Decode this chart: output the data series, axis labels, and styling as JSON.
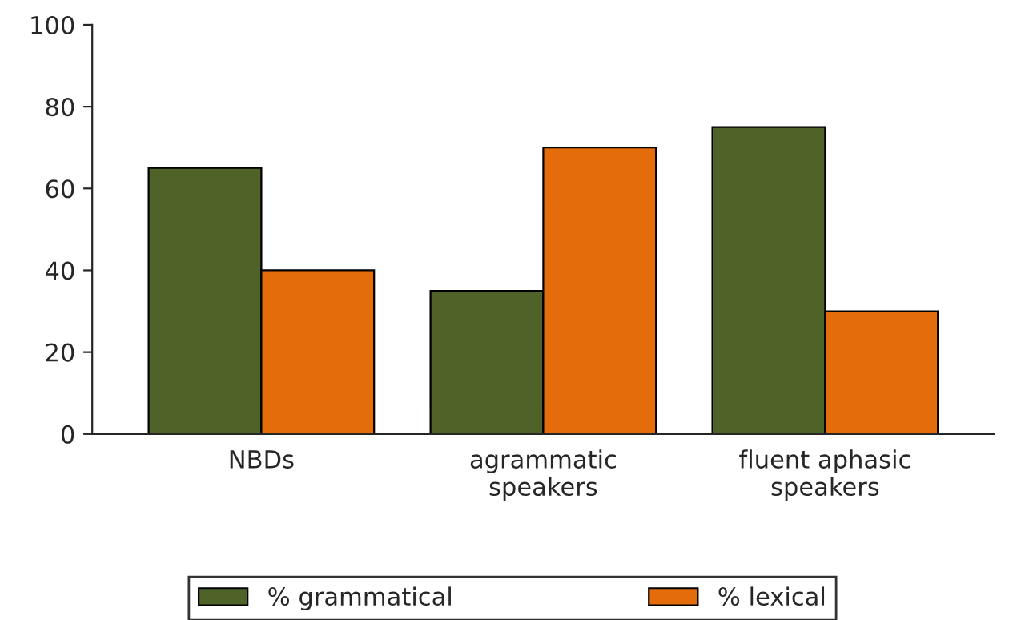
{
  "chart_data": {
    "type": "bar",
    "categories": [
      "NBDs",
      "agrammatic\nspeakers",
      "fluent aphasic\nspeakers"
    ],
    "series": [
      {
        "name": "% grammatical",
        "color": "#4f6228",
        "values": [
          65,
          35,
          75
        ]
      },
      {
        "name": "% lexical",
        "color": "#e46c0a",
        "values": [
          40,
          70,
          30
        ]
      }
    ],
    "ylim": [
      0,
      100
    ],
    "yticks": [
      0,
      20,
      40,
      60,
      80,
      100
    ],
    "grid": false,
    "legend": "bottom"
  }
}
